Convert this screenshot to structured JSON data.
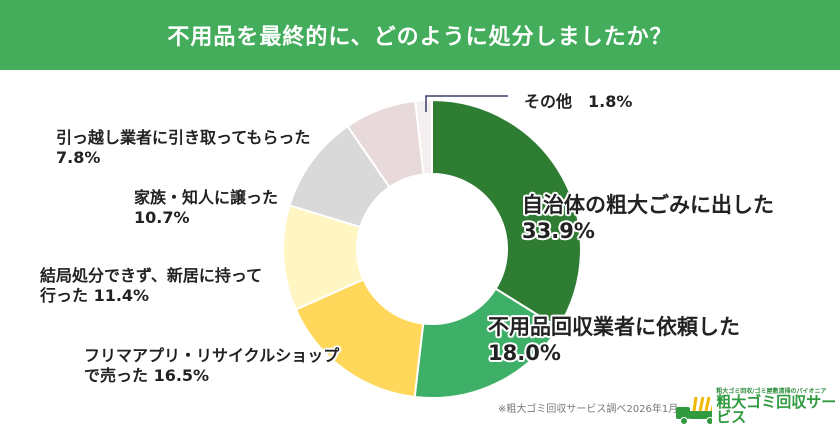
{
  "title": "不用品を最終的に、どのように処分しましたか？",
  "chart_data": {
    "type": "pie",
    "donut": true,
    "start": "top, clockwise",
    "slices": [
      {
        "label": "自治体の粗大ごみに出した",
        "value": 33.9,
        "display": "33.9%",
        "color": "#2e7d32"
      },
      {
        "label": "不用品回収業者に依頼した",
        "value": 18.0,
        "display": "18.0%",
        "color": "#3daf67"
      },
      {
        "label": "フリマアプリ・リサイクルショップで売った",
        "value": 16.5,
        "display": "16.5%",
        "color": "#ffd75a"
      },
      {
        "label": "結局処分できず、新居に持って行った",
        "value": 11.4,
        "display": "11.4%",
        "color": "#fff6c4"
      },
      {
        "label": "家族・知人に譲った",
        "value": 10.7,
        "display": "10.7%",
        "color": "#d9d9d9"
      },
      {
        "label": "引っ越し業者に引き取ってもらった",
        "value": 7.8,
        "display": "7.8%",
        "color": "#e8dadb"
      },
      {
        "label": "その他",
        "value": 1.8,
        "display": "1.8%",
        "color": "#f4eeee"
      }
    ]
  },
  "labels": {
    "s0_a": "自治体の粗大ごみに出した",
    "s0_b": "33.9%",
    "s1_a": "不用品回収業者に依頼した",
    "s1_b": "18.0%",
    "s2_a": "フリマアプリ・リサイクルショップ",
    "s2_b": "で売った 16.5%",
    "s3_a": "結局処分できず、新居に持って",
    "s3_b": "行った 11.4%",
    "s4_a": "家族・知人に譲った",
    "s4_b": "10.7%",
    "s5_a": "引っ越し業者に引き取ってもらった",
    "s5_b": "7.8%",
    "s6": "その他　1.8%"
  },
  "source": "※粗大ゴミ回収サービス調べ2026年1月",
  "logo": {
    "tagline": "粗大ゴミ回収/ゴミ屋敷清掃のパイオニア",
    "name": "粗大ゴミ回収サービス"
  },
  "colors": {
    "header": "#43ad5c"
  }
}
